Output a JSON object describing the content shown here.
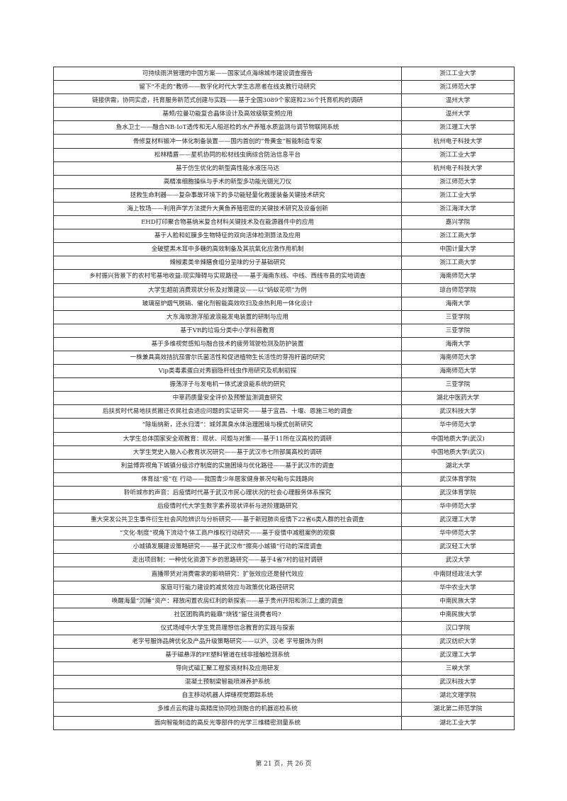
{
  "rows": [
    {
      "title": "可持续雨洪管理的中国方案——国家试点海绵城市建设调查报告",
      "school": "浙江工业大学"
    },
    {
      "title": "留下“不走的”教师——数字化时代大学生志愿者在线支教行动研究",
      "school": "浙江师范大学"
    },
    {
      "title": "链接供需，协同实虚，托育服务新范式创建与实践——基于全国3089个家庭和236个托育机构的调研",
      "school": "温州大学"
    },
    {
      "title": "基频/拉曼功能复合晶体设计及高效级联变频应用",
      "school": "温州大学"
    },
    {
      "title": "鱼水卫士——融合NB-IoT透传和无人船巡检的水产养殖水质监测与调节物联网系统",
      "school": "浙江理工大学"
    },
    {
      "title": "骨修复材料锻冲一体化制备装置——国内首创的“骨黄金”智能制造专家",
      "school": "杭州电子科技大学"
    },
    {
      "title": "松林精盾——星机协同的松材线虫病综合防治信息平台",
      "school": "浙江工业大学"
    },
    {
      "title": "基于仿生优化的新型高性能水液压马达",
      "school": "杭州电子科技大学"
    },
    {
      "title": "高精准细胞操纵与手术的新型多功能光镊光刀仪",
      "school": "浙江师范大学"
    },
    {
      "title": "拯救生命利器——复杂事故环境下的多功能轻量化救援装备关键技术研究",
      "school": "浙江工业大学"
    },
    {
      "title": "海上牧场——利用声学方法提升大黄鱼养殖密度的关键技术研究及设备创新",
      "school": "浙江海洋大学"
    },
    {
      "title": "EHD打印聚合物基纳米复合材料关键技术及在能源器件中的应用",
      "school": "嘉兴学院"
    },
    {
      "title": "基于人脸和虹膜多生物特征的双向活体检测算法及应用",
      "school": "浙江工商大学"
    },
    {
      "title": "全破壁黑木耳中多糖的高效制备及其抗氧化应激作用机制",
      "school": "中国计量大学"
    },
    {
      "title": "辣椒素类辛辣膳食组分呈味的分子基础研究",
      "school": "浙江工商大学"
    },
    {
      "title": "乡村振兴背景下的农村宅基地收益:现实障碍与实现路径——基于海南东线、中线、西线市县的实地调查",
      "school": "海南师范大学"
    },
    {
      "title": "大学生超前消费现状分析及对策建议——以“蚂蚁花呗”为例",
      "school": "琼台师范学院"
    },
    {
      "title": "玻璃窑炉烟气脱硝、催化剂智能高效吹扫及余热利用一体化设计",
      "school": "海南大学"
    },
    {
      "title": "大东海旅游浮船波浪能发电装置的研制与应用",
      "school": "三亚学院"
    },
    {
      "title": "基于VR的垃圾分类中小学科普教育",
      "school": "三亚学院"
    },
    {
      "title": "基于多维视觉感知与融合技术的疲劳驾驶检测及防护装置",
      "school": "海南大学"
    },
    {
      "title": "一株兼具高效拮抗茄雷尔氏菌活性和促进植物生长活性的芽孢杆菌的研究",
      "school": "海南师范大学"
    },
    {
      "title": "Vip类毒素蛋白对秀丽隐杆线虫作用研究及机制初探",
      "school": "海南师范大学"
    },
    {
      "title": "振荡浮子与发电机一体式波浪能系统的研究",
      "school": "三亚学院"
    },
    {
      "title": "中草药质量安全评价及预警监测调查研究",
      "school": "湖北中医药大学"
    },
    {
      "title": "后扶贫时代易地扶贫搬迁农民社会适应问题的实证研究——基于宜昌、十堰、恩施三地的调查",
      "school": "武汉科技大学"
    },
    {
      "title": "“除垢纳新，还水归清”：城郊黑臭水体治理困境与模式创新研究",
      "school": "华中师范大学"
    },
    {
      "title": "大学生总体国家安全观教育：现状、问题与对策——基于11所在汉高校的调研",
      "school": "中国地质大学(武汉)"
    },
    {
      "title": "大学生党史入脑入心教育状况研究——基于武汉市七所部属高校的调研",
      "school": "中国地质大学(武汉)"
    },
    {
      "title": "利益博弈视角下城镇分级诊疗制度的实施困境与优化路径——基于武汉市的调查",
      "school": "湖北大学"
    },
    {
      "title": "体育战“疫”在 行动——我国青少年居家健身景况勾勒与实践路向",
      "school": "武汉体育学院"
    },
    {
      "title": "聆听城市的声音：后疫情时代基于武汉市民心理状况的社会心理服务体系探究",
      "school": "武汉体育学院"
    },
    {
      "title": "后疫情时代大学生数字素养现状评析与进阶理路研究",
      "school": "华中师范大学"
    },
    {
      "title": "重大突发公共卫生事件衍生社会风险辨识与分析研究——基于新冠肺炎疫情下22省6类人群的社会调查",
      "school": "武汉理工大学"
    },
    {
      "title": "“文化-制度”视角下流动个体工商户维权行动研究——基于疫情中减租案例的观察",
      "school": "华中师范大学"
    },
    {
      "title": "小城镇发展建设策略研究——基于武汉市“擦亮小城镇”行动的深度调查",
      "school": "武汉轻工大学"
    },
    {
      "title": "走出项目制：一种优化资源下乡的思路研究——基于4省7村的驻村调研",
      "school": "武汉大学"
    },
    {
      "title": "直播带货对消费需求的影响研究：扩张效应还是替代效应",
      "school": "中南财经政法大学"
    },
    {
      "title": "家庭可行能力建设的减贫效应与政策优化路径研究",
      "school": "华中农业大学"
    },
    {
      "title": "唤醒海量“沉睡”资产：释放闲置农房红利的新探索——基于贵州开阳和浙江上虞的调查",
      "school": "中南民族大学"
    },
    {
      "title": "社区团购真的能靠“烧钱”留住消费者吗?",
      "school": "中南民族大学"
    },
    {
      "title": "仪式场域中大学生党员理想信念教育的实践与探索",
      "school": "汉口学院"
    },
    {
      "title": "老字号服饰品牌优化及产品升级策略研究——以沪、汉老 字号服饰为例",
      "school": "武汉纺织大学"
    },
    {
      "title": "基于磁悬浮的PE塑料管道在线非接触检测系统",
      "school": "武汉理工大学"
    },
    {
      "title": "导向式磁汇聚工程浆液材料及应用研发",
      "school": "三峡大学"
    },
    {
      "title": "混凝土预制梁智能喷淋养护系统",
      "school": "武汉科技大学"
    },
    {
      "title": "自主移动机器人焊缝视觉跟踪系统",
      "school": "湖北文理学院"
    },
    {
      "title": "多维点云构建与高精度协同检测融合的机器巡检系统",
      "school": "湖北第二师范学院"
    },
    {
      "title": "面向智能制造的高反光零部件的光学三维精密测量系统",
      "school": "湖北工业大学"
    }
  ],
  "footer": "第 21 页，共 26 页"
}
